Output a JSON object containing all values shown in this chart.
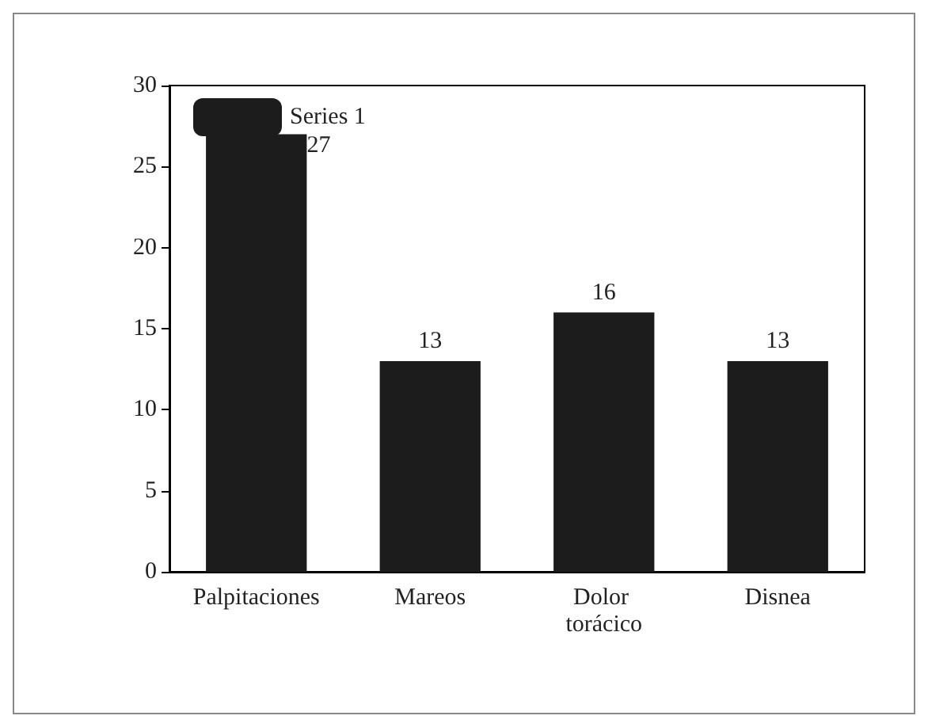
{
  "chart_data": {
    "type": "bar",
    "categories": [
      "Palpitaciones",
      "Mareos",
      "Dolor torácico",
      "Disnea"
    ],
    "series": [
      {
        "name": "Series 1",
        "color": "#1c1c1c",
        "values": [
          27,
          13,
          16,
          13
        ]
      }
    ],
    "ylim": [
      0,
      30
    ],
    "yticks": [
      0,
      5,
      10,
      15,
      20,
      25,
      30
    ],
    "grid": false,
    "legend": "top left",
    "data_labels": true
  }
}
